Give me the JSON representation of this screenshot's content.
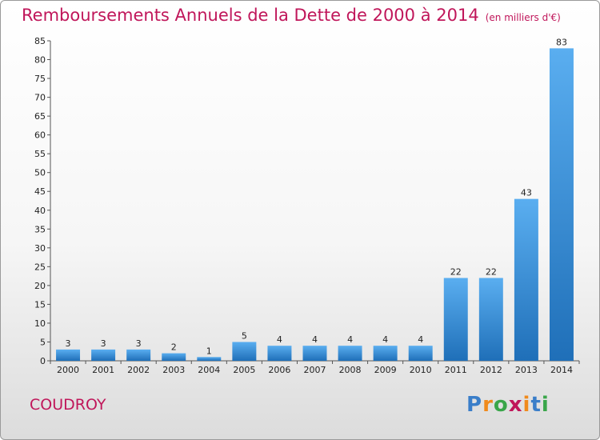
{
  "chart_data": {
    "type": "bar",
    "title": "Remboursements Annuels de la Dette de 2000 à 2014",
    "unit_note": "(en milliers d'€)",
    "categories": [
      "2000",
      "2001",
      "2002",
      "2003",
      "2004",
      "2005",
      "2006",
      "2007",
      "2008",
      "2009",
      "2010",
      "2011",
      "2012",
      "2013",
      "2014"
    ],
    "values": [
      3,
      3,
      3,
      2,
      1,
      5,
      4,
      4,
      4,
      4,
      4,
      22,
      22,
      43,
      83
    ],
    "ylim": [
      0,
      85
    ],
    "yticks": [
      0,
      5,
      10,
      15,
      20,
      25,
      30,
      35,
      40,
      45,
      50,
      55,
      60,
      65,
      70,
      75,
      80,
      85
    ],
    "grid": false,
    "bar_color": "#3a8fd6"
  },
  "footer": {
    "commune": "COUDROY",
    "logo_letters": [
      "P",
      "r",
      "o",
      "x",
      "i",
      "t",
      "i"
    ],
    "logo_colors": [
      "#3a7ec9",
      "#f08a1c",
      "#3aa64a",
      "#c0165a",
      "#f08a1c",
      "#3a7ec9",
      "#3aa64a"
    ]
  }
}
